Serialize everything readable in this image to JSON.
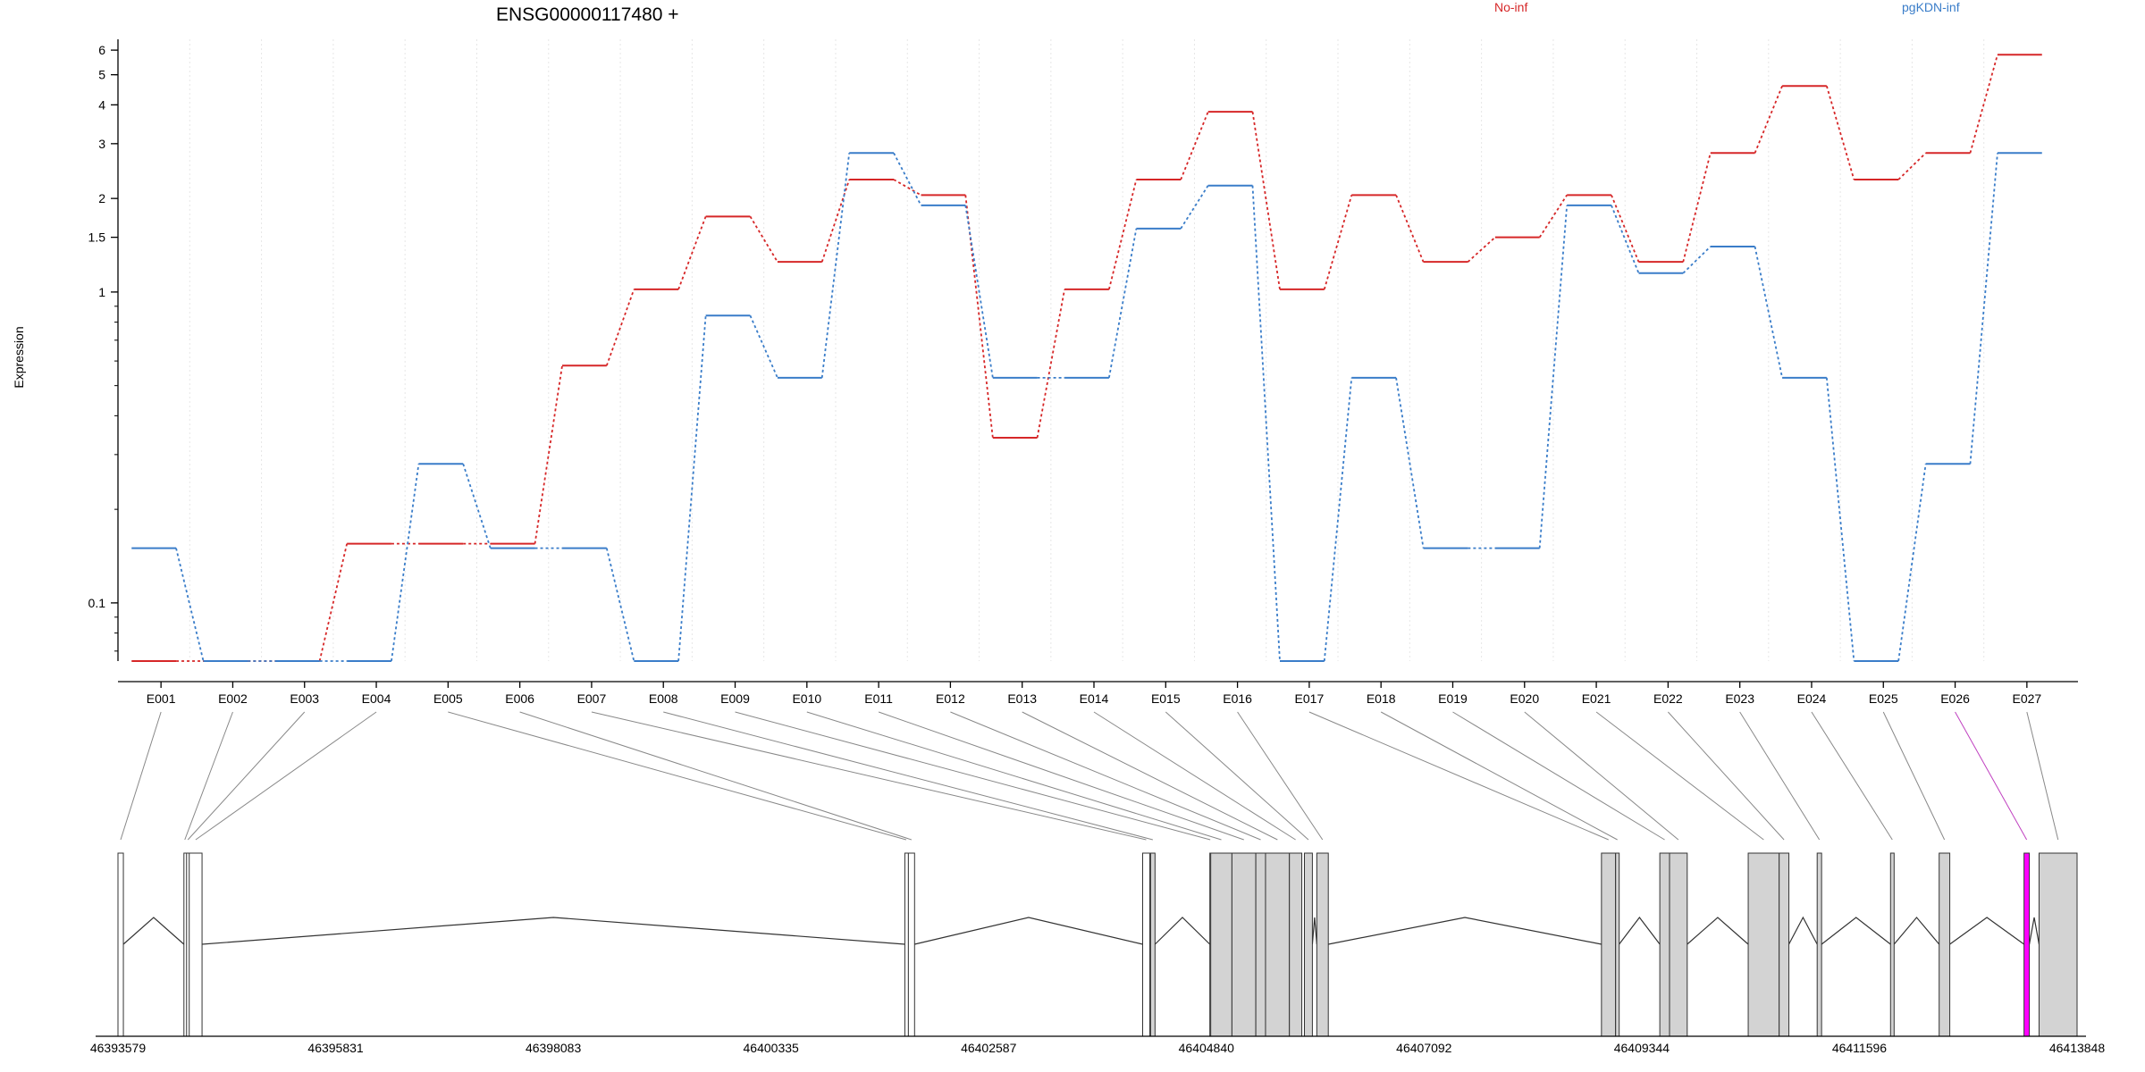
{
  "chart_data": {
    "type": "line",
    "title": "ENSG00000117480 +",
    "ylabel": "Expression",
    "y_scale": "log",
    "ylim": [
      0.065,
      6.5
    ],
    "y_ticks": [
      {
        "value": 0.1,
        "label": "0.1"
      },
      {
        "value": 1,
        "label": "1"
      },
      {
        "value": 1.5,
        "label": "1.5"
      },
      {
        "value": 2,
        "label": "2"
      },
      {
        "value": 3,
        "label": "3"
      },
      {
        "value": 4,
        "label": "4"
      },
      {
        "value": 5,
        "label": "5"
      },
      {
        "value": 6,
        "label": "6"
      }
    ],
    "categories": [
      "E001",
      "E002",
      "E003",
      "E004",
      "E005",
      "E006",
      "E007",
      "E008",
      "E009",
      "E010",
      "E011",
      "E012",
      "E013",
      "E014",
      "E015",
      "E016",
      "E017",
      "E018",
      "E019",
      "E020",
      "E021",
      "E022",
      "E023",
      "E024",
      "E025",
      "E026",
      "E027"
    ],
    "series": [
      {
        "name": "No-inf",
        "color": "#d62728",
        "values": [
          0.065,
          0.065,
          0.065,
          0.155,
          0.155,
          0.155,
          0.58,
          1.02,
          1.75,
          1.25,
          2.3,
          2.05,
          0.34,
          1.02,
          2.3,
          3.8,
          1.02,
          2.05,
          1.25,
          1.5,
          2.05,
          1.25,
          2.8,
          4.6,
          2.3,
          2.8,
          5.8
        ]
      },
      {
        "name": "pgKDN-inf",
        "color": "#3a7dc9",
        "values": [
          0.15,
          0.065,
          0.065,
          0.065,
          0.28,
          0.15,
          0.15,
          0.065,
          0.84,
          0.53,
          2.8,
          1.9,
          0.53,
          0.53,
          1.6,
          2.2,
          0.065,
          0.53,
          0.15,
          0.15,
          1.9,
          1.15,
          1.4,
          0.53,
          0.065,
          0.28,
          2.8
        ]
      }
    ],
    "gene_axis": {
      "tick_labels": [
        "46393579",
        "46395831",
        "46398083",
        "46400335",
        "46402587",
        "46404840",
        "46407092",
        "46409344",
        "46411596",
        "46413848"
      ],
      "range": [
        46393579,
        46413848
      ],
      "exons": [
        {
          "id": "E001",
          "start": 46393579,
          "end": 46393640,
          "fill": "#ffffff"
        },
        {
          "id": "E002",
          "start": 46394325,
          "end": 46394345,
          "fill": "#ffffff"
        },
        {
          "id": "E003",
          "start": 46394355,
          "end": 46394385,
          "fill": "#ffffff"
        },
        {
          "id": "E004",
          "start": 46394385,
          "end": 46394530,
          "fill": "#ffffff"
        },
        {
          "id": "E005",
          "start": 46402480,
          "end": 46402510,
          "fill": "#ffffff"
        },
        {
          "id": "E006",
          "start": 46402520,
          "end": 46402590,
          "fill": "#ffffff"
        },
        {
          "id": "E007",
          "start": 46405170,
          "end": 46405250,
          "fill": "#ffffff"
        },
        {
          "id": "E008",
          "start": 46405260,
          "end": 46405310,
          "fill": "#d3d3d3"
        },
        {
          "id": "E009",
          "start": 46405930,
          "end": 46405940,
          "fill": "#d3d3d3"
        },
        {
          "id": "E010",
          "start": 46405940,
          "end": 46406180,
          "fill": "#d3d3d3"
        },
        {
          "id": "E011",
          "start": 46406180,
          "end": 46406450,
          "fill": "#d3d3d3"
        },
        {
          "id": "E012",
          "start": 46406450,
          "end": 46406560,
          "fill": "#d3d3d3"
        },
        {
          "id": "E013",
          "start": 46406560,
          "end": 46406830,
          "fill": "#d3d3d3"
        },
        {
          "id": "E014",
          "start": 46406830,
          "end": 46406970,
          "fill": "#d3d3d3"
        },
        {
          "id": "E015",
          "start": 46407000,
          "end": 46407090,
          "fill": "#d3d3d3"
        },
        {
          "id": "E016",
          "start": 46407140,
          "end": 46407270,
          "fill": "#d3d3d3"
        },
        {
          "id": "E017",
          "start": 46410360,
          "end": 46410520,
          "fill": "#d3d3d3"
        },
        {
          "id": "E018",
          "start": 46410520,
          "end": 46410560,
          "fill": "#d3d3d3"
        },
        {
          "id": "E019",
          "start": 46411020,
          "end": 46411130,
          "fill": "#d3d3d3"
        },
        {
          "id": "E020",
          "start": 46411130,
          "end": 46411330,
          "fill": "#d3d3d3"
        },
        {
          "id": "E021",
          "start": 46412020,
          "end": 46412370,
          "fill": "#d3d3d3"
        },
        {
          "id": "E022",
          "start": 46412370,
          "end": 46412480,
          "fill": "#d3d3d3"
        },
        {
          "id": "E023",
          "start": 46412800,
          "end": 46412850,
          "fill": "#d3d3d3"
        },
        {
          "id": "E024",
          "start": 46413630,
          "end": 46413670,
          "fill": "#d3d3d3"
        },
        {
          "id": "E025",
          "start": 46414180,
          "end": 46414300,
          "fill": "#d3d3d3"
        },
        {
          "id": "E026",
          "start": 46415140,
          "end": 46415200,
          "fill": "#ff00ff"
        },
        {
          "id": "E027",
          "start": 46415310,
          "end": 46415740,
          "fill": "#d3d3d3"
        }
      ]
    }
  }
}
